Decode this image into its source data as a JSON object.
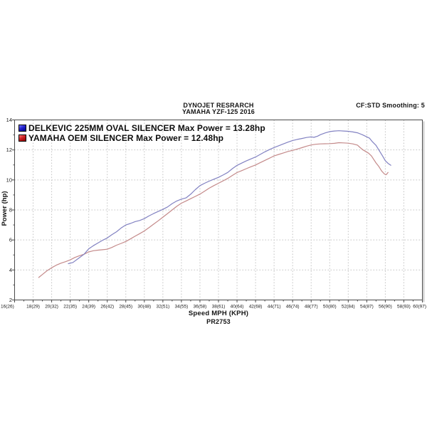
{
  "header": {
    "title_line1": "DYNOJET RESRARCH",
    "title_line2": "YAMAHA YZF-125 2016",
    "right_note": "CF:STD Smoothing: 5"
  },
  "footer": {
    "xlabel": "Speed MPH (KPH)",
    "code": "PR2753"
  },
  "colors": {
    "background": "#ffffff",
    "plot_border": "#4a4a4a",
    "plot_shadow": "#bcbcbc",
    "grid": "#c4c4c4",
    "tick_text": "#1a1a1a",
    "legend_blue_swatch": "#2424cf",
    "legend_red_swatch": "#cf2424",
    "blue_line": "#8282c2",
    "red_line": "#c48a8a"
  },
  "chart_data": {
    "type": "line",
    "title": "DYNOJET RESRARCH",
    "subtitle": "YAMAHA YZF-125 2016",
    "smoothing_note": "CF:STD Smoothing: 5",
    "run_code": "PR2753",
    "xlabel": "Speed MPH (KPH)",
    "ylabel": "Power (hp)",
    "xlim": [
      16,
      60
    ],
    "ylim": [
      2,
      14
    ],
    "x_major_step": 2,
    "y_major_step": 2,
    "grid": "dashed",
    "legend_position": "top-left-inside",
    "x_tick_labels": [
      "16(26)",
      "18(29)",
      "20(32)",
      "22(35)",
      "24(39)",
      "26(42)",
      "28(45)",
      "30(48)",
      "32(51)",
      "34(55)",
      "36(58)",
      "38(61)",
      "40(64)",
      "42(68)",
      "44(71)",
      "46(74)",
      "48(77)",
      "50(80)",
      "52(84)",
      "54(87)",
      "56(90)",
      "58(93)",
      "60(97)"
    ],
    "y_ticks": [
      2,
      4,
      6,
      8,
      10,
      12,
      14
    ],
    "series": [
      {
        "name": "YAMAHA OEM SILENCER",
        "legend_label": "YAMAHA OEM SILENCER Max Power = 12.48hp",
        "max_power_hp": 12.48,
        "swatch_color": "#cf2424",
        "line_color": "#c48a8a",
        "points": [
          [
            18.6,
            3.5
          ],
          [
            19,
            3.7
          ],
          [
            19.5,
            3.95
          ],
          [
            20,
            4.15
          ],
          [
            20.5,
            4.32
          ],
          [
            21,
            4.45
          ],
          [
            21.5,
            4.55
          ],
          [
            22,
            4.67
          ],
          [
            22.5,
            4.83
          ],
          [
            23,
            4.95
          ],
          [
            23.5,
            5.05
          ],
          [
            24,
            5.2
          ],
          [
            24.5,
            5.28
          ],
          [
            25,
            5.32
          ],
          [
            25.5,
            5.35
          ],
          [
            26,
            5.38
          ],
          [
            26.5,
            5.5
          ],
          [
            27,
            5.65
          ],
          [
            27.5,
            5.77
          ],
          [
            28,
            5.9
          ],
          [
            28.5,
            6.07
          ],
          [
            29,
            6.25
          ],
          [
            29.5,
            6.42
          ],
          [
            30,
            6.6
          ],
          [
            30.5,
            6.82
          ],
          [
            31,
            7.05
          ],
          [
            31.5,
            7.28
          ],
          [
            32,
            7.52
          ],
          [
            32.5,
            7.76
          ],
          [
            33,
            8.0
          ],
          [
            33.5,
            8.24
          ],
          [
            34,
            8.45
          ],
          [
            34.5,
            8.6
          ],
          [
            35,
            8.75
          ],
          [
            35.5,
            8.9
          ],
          [
            36,
            9.06
          ],
          [
            36.5,
            9.25
          ],
          [
            37,
            9.45
          ],
          [
            37.5,
            9.62
          ],
          [
            38,
            9.78
          ],
          [
            38.5,
            9.94
          ],
          [
            39,
            10.1
          ],
          [
            39.5,
            10.3
          ],
          [
            40,
            10.49
          ],
          [
            40.5,
            10.62
          ],
          [
            41,
            10.75
          ],
          [
            41.5,
            10.88
          ],
          [
            42,
            11.0
          ],
          [
            42.5,
            11.15
          ],
          [
            43,
            11.3
          ],
          [
            43.5,
            11.45
          ],
          [
            44,
            11.6
          ],
          [
            44.5,
            11.7
          ],
          [
            45,
            11.8
          ],
          [
            45.5,
            11.9
          ],
          [
            46,
            11.97
          ],
          [
            46.5,
            12.06
          ],
          [
            47,
            12.15
          ],
          [
            47.5,
            12.25
          ],
          [
            48,
            12.33
          ],
          [
            48.5,
            12.38
          ],
          [
            49,
            12.4
          ],
          [
            49.5,
            12.41
          ],
          [
            50,
            12.42
          ],
          [
            50.5,
            12.44
          ],
          [
            51,
            12.48
          ],
          [
            51.5,
            12.47
          ],
          [
            52,
            12.45
          ],
          [
            52.5,
            12.4
          ],
          [
            53,
            12.32
          ],
          [
            53.3,
            12.15
          ],
          [
            53.6,
            12.0
          ],
          [
            54,
            11.85
          ],
          [
            54.2,
            11.78
          ],
          [
            54.5,
            11.6
          ],
          [
            55,
            11.13
          ],
          [
            55.3,
            10.9
          ],
          [
            55.6,
            10.6
          ],
          [
            55.9,
            10.4
          ],
          [
            56.1,
            10.35
          ],
          [
            56.3,
            10.5
          ]
        ]
      },
      {
        "name": "DELKEVIC 225MM OVAL SILENCER",
        "legend_label": "DELKEVIC 225MM OVAL SILENCER Max Power = 13.28hp",
        "max_power_hp": 13.28,
        "swatch_color": "#2424cf",
        "line_color": "#8282c2",
        "points": [
          [
            21.8,
            4.42
          ],
          [
            22.3,
            4.5
          ],
          [
            23,
            4.82
          ],
          [
            23.5,
            5.05
          ],
          [
            24,
            5.41
          ],
          [
            24.5,
            5.62
          ],
          [
            25,
            5.8
          ],
          [
            25.5,
            5.98
          ],
          [
            26,
            6.13
          ],
          [
            26.5,
            6.35
          ],
          [
            27,
            6.55
          ],
          [
            27.5,
            6.8
          ],
          [
            28,
            7.0
          ],
          [
            28.5,
            7.1
          ],
          [
            29,
            7.22
          ],
          [
            29.5,
            7.3
          ],
          [
            30,
            7.42
          ],
          [
            30.5,
            7.6
          ],
          [
            31,
            7.76
          ],
          [
            31.5,
            7.9
          ],
          [
            32,
            8.04
          ],
          [
            32.5,
            8.2
          ],
          [
            33,
            8.42
          ],
          [
            33.5,
            8.6
          ],
          [
            34,
            8.72
          ],
          [
            34.5,
            8.8
          ],
          [
            35,
            9.05
          ],
          [
            35.5,
            9.35
          ],
          [
            36,
            9.62
          ],
          [
            36.5,
            9.78
          ],
          [
            37,
            9.92
          ],
          [
            37.5,
            10.05
          ],
          [
            38,
            10.17
          ],
          [
            38.5,
            10.33
          ],
          [
            39,
            10.5
          ],
          [
            39.5,
            10.75
          ],
          [
            40,
            10.97
          ],
          [
            40.5,
            11.12
          ],
          [
            41,
            11.27
          ],
          [
            41.5,
            11.4
          ],
          [
            42,
            11.53
          ],
          [
            42.5,
            11.7
          ],
          [
            43,
            11.87
          ],
          [
            43.5,
            12.02
          ],
          [
            44,
            12.16
          ],
          [
            44.5,
            12.28
          ],
          [
            45,
            12.4
          ],
          [
            45.5,
            12.52
          ],
          [
            46,
            12.63
          ],
          [
            46.5,
            12.7
          ],
          [
            47,
            12.76
          ],
          [
            47.5,
            12.83
          ],
          [
            48,
            12.87
          ],
          [
            48.3,
            12.84
          ],
          [
            48.7,
            12.92
          ],
          [
            49,
            13.02
          ],
          [
            49.5,
            13.13
          ],
          [
            50,
            13.22
          ],
          [
            50.5,
            13.26
          ],
          [
            51,
            13.28
          ],
          [
            51.5,
            13.26
          ],
          [
            52,
            13.24
          ],
          [
            52.5,
            13.2
          ],
          [
            53,
            13.14
          ],
          [
            53.5,
            13.02
          ],
          [
            54,
            12.87
          ],
          [
            54.3,
            12.78
          ],
          [
            54.6,
            12.55
          ],
          [
            55,
            12.3
          ],
          [
            55.3,
            12.0
          ],
          [
            55.7,
            11.6
          ],
          [
            56,
            11.28
          ],
          [
            56.3,
            11.1
          ],
          [
            56.6,
            10.98
          ]
        ]
      }
    ]
  }
}
